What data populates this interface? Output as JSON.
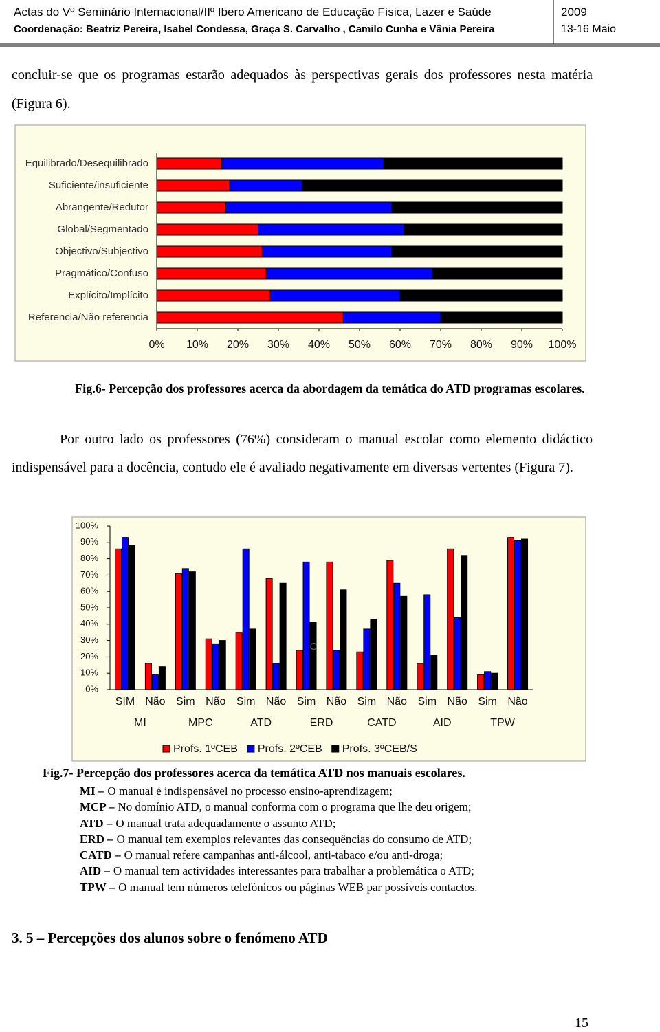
{
  "header": {
    "title": "Actas do Vº Seminário Internacional/IIº Ibero Americano de Educação Física, Lazer e Saúde",
    "coordination": "Coordenação: Beatriz Pereira, Isabel Condessa, Graça S. Carvalho , Camilo Cunha e Vânia Pereira",
    "year": "2009",
    "dates": "13-16 Maio"
  },
  "paragraphs": [
    "concluir-se que os programas estarão adequados às perspectivas gerais dos professores nesta matéria (Figura 6).",
    "Por outro lado os professores (76%) consideram o manual escolar como elemento didáctico indispensável para a docência, contudo ele é avaliado negativamente em diversas vertentes (Figura 7)."
  ],
  "chart_data": [
    {
      "type": "bar",
      "orientation": "horizontal",
      "stacked": true,
      "categories": [
        "Equilibrado/Desequilibrado",
        "Suficiente/insuficiente",
        "Abrangente/Redutor",
        "Global/Segmentado",
        "Objectivo/Subjectivo",
        "Pragmático/Confuso",
        "Explícito/Implícito",
        "Referencia/Não referencia"
      ],
      "series": [
        {
          "color": "#ff0000",
          "values": [
            16,
            18,
            17,
            25,
            26,
            27,
            28,
            46
          ]
        },
        {
          "color": "#0000ff",
          "values": [
            40,
            18,
            41,
            36,
            32,
            41,
            32,
            24
          ]
        },
        {
          "color": "#000000",
          "values": [
            44,
            64,
            42,
            39,
            42,
            32,
            40,
            30
          ]
        }
      ],
      "xlim": [
        0,
        100
      ],
      "xticks": [
        {
          "value": 0,
          "label": "0%"
        },
        {
          "value": 10,
          "label": "10%"
        },
        {
          "value": 20,
          "label": "20%"
        },
        {
          "value": 30,
          "label": "30%"
        },
        {
          "value": 40,
          "label": "40%"
        },
        {
          "value": 50,
          "label": "50%"
        },
        {
          "value": 60,
          "label": "60%"
        },
        {
          "value": 70,
          "label": "70%"
        },
        {
          "value": 80,
          "label": "80%"
        },
        {
          "value": 90,
          "label": "90%"
        },
        {
          "value": 100,
          "label": "100%"
        }
      ]
    },
    {
      "type": "bar",
      "orientation": "vertical",
      "stacked": false,
      "categories": [
        "SIM",
        "Não",
        "Sim",
        "Não",
        "Sim",
        "Não",
        "Sim",
        "Não",
        "Sim",
        "Não",
        "Sim",
        "Não",
        "Sim",
        "Não"
      ],
      "groups": [
        "MI",
        "MPC",
        "ATD",
        "ERD",
        "CATD",
        "AID",
        "TPW"
      ],
      "series": [
        {
          "name": "Profs. 1ºCEB",
          "color": "#ff0000",
          "values": [
            86,
            16,
            71,
            31,
            35,
            68,
            24,
            78,
            23,
            79,
            16,
            86,
            9,
            93
          ]
        },
        {
          "name": "Profs. 2ºCEB",
          "color": "#0000ff",
          "values": [
            93,
            9,
            74,
            28,
            86,
            16,
            78,
            24,
            37,
            65,
            58,
            44,
            11,
            91
          ]
        },
        {
          "name": "Profs. 3ºCEB/S",
          "color": "#000000",
          "values": [
            88,
            14,
            72,
            30,
            37,
            65,
            41,
            61,
            43,
            57,
            21,
            82,
            10,
            92
          ]
        }
      ],
      "annotation": "C",
      "ylim": [
        0,
        100
      ],
      "yticks": [
        {
          "value": 0,
          "label": "0%"
        },
        {
          "value": 10,
          "label": "10%"
        },
        {
          "value": 20,
          "label": "20%"
        },
        {
          "value": 30,
          "label": "30%"
        },
        {
          "value": 40,
          "label": "40%"
        },
        {
          "value": 50,
          "label": "50%"
        },
        {
          "value": 60,
          "label": "60%"
        },
        {
          "value": 70,
          "label": "70%"
        },
        {
          "value": 80,
          "label": "80%"
        },
        {
          "value": 90,
          "label": "90%"
        },
        {
          "value": 100,
          "label": "100%"
        }
      ],
      "legend": "bottom"
    }
  ],
  "captions": [
    "Fig.6- Percepção dos professores acerca da abordagem da temática do ATD programas escolares.",
    "Fig.7- Percepção dos professores acerca da temática ATD nos manuais escolares."
  ],
  "definitions": [
    {
      "term": "MI –",
      "text": "O manual é indispensável no processo ensino-aprendizagem;"
    },
    {
      "term": "MCP –",
      "text": "No domínio ATD, o manual conforma com o programa que lhe deu origem;"
    },
    {
      "term": "ATD –",
      "text": "O manual trata adequadamente o assunto ATD;"
    },
    {
      "term": "ERD –",
      "text": "O manual tem exemplos relevantes das consequências do consumo de ATD;"
    },
    {
      "term": "CATD –",
      "text": "O manual refere campanhas anti-álcool, anti-tabaco e/ou anti-droga;"
    },
    {
      "term": "AID –",
      "text": "O manual tem actividades interessantes para trabalhar a problemática  o ATD;"
    },
    {
      "term": "TPW –",
      "text": "O manual tem números telefónicos ou páginas WEB par possíveis contactos."
    }
  ],
  "section_heading": "3. 5 – Percepções dos alunos sobre o fenómeno ATD",
  "page_number": "15"
}
